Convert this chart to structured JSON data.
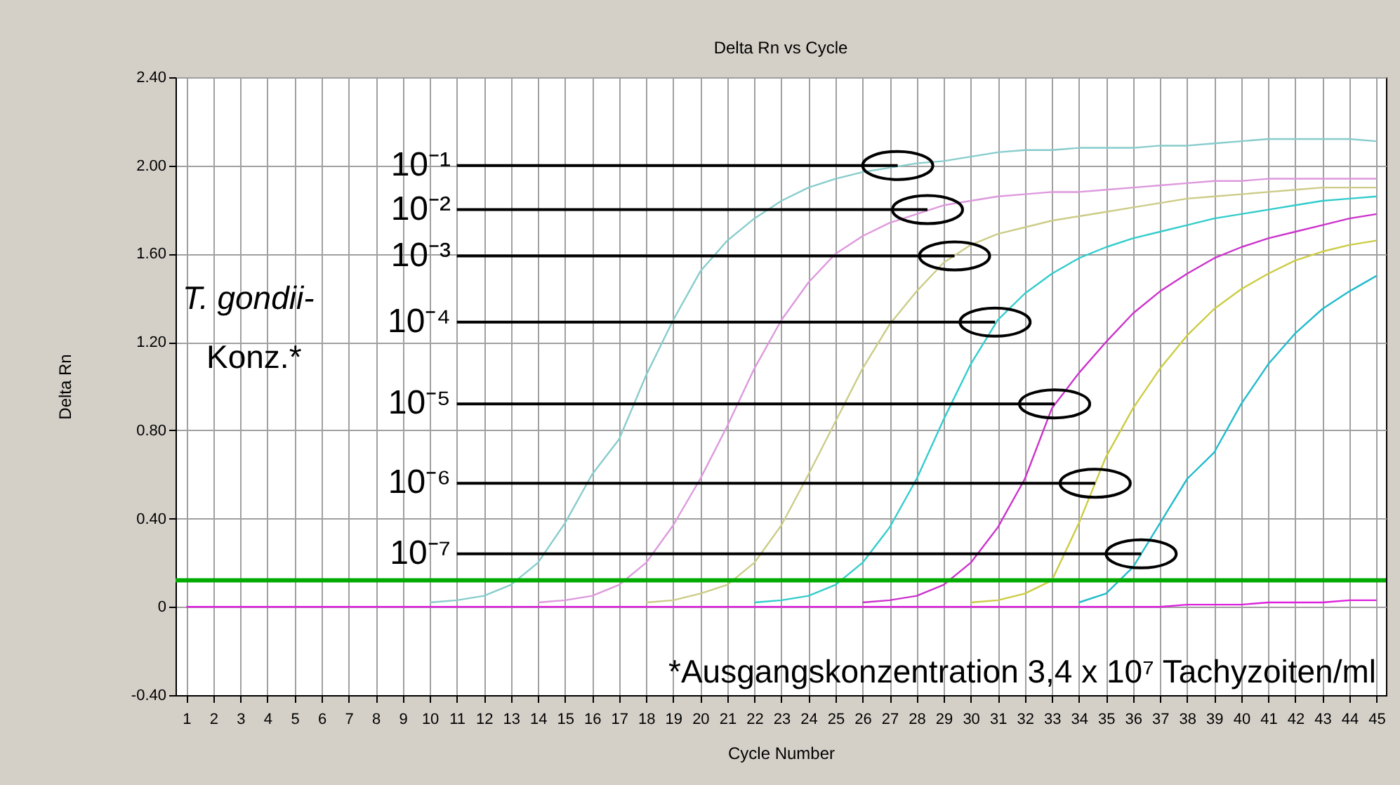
{
  "chart_data": {
    "type": "line",
    "title": "Delta Rn vs Cycle",
    "xlabel": "Cycle Number",
    "ylabel": "Delta Rn",
    "x": [
      1,
      2,
      3,
      4,
      5,
      6,
      7,
      8,
      9,
      10,
      11,
      12,
      13,
      14,
      15,
      16,
      17,
      18,
      19,
      20,
      21,
      22,
      23,
      24,
      25,
      26,
      27,
      28,
      29,
      30,
      31,
      32,
      33,
      34,
      35,
      36,
      37,
      38,
      39,
      40,
      41,
      42,
      43,
      44,
      45
    ],
    "series": [
      {
        "color": "#88cccc",
        "values": [
          null,
          null,
          null,
          null,
          null,
          null,
          null,
          null,
          null,
          0.02,
          0.03,
          0.05,
          0.1,
          0.2,
          0.38,
          0.6,
          0.76,
          1.05,
          1.3,
          1.52,
          1.66,
          1.76,
          1.84,
          1.9,
          1.94,
          1.97,
          1.99,
          2.01,
          2.02,
          2.04,
          2.06,
          2.07,
          2.07,
          2.08,
          2.08,
          2.08,
          2.09,
          2.09,
          2.1,
          2.11,
          2.12,
          2.12,
          2.12,
          2.12,
          2.11
        ]
      },
      {
        "color": "#dd99dd",
        "values": [
          null,
          null,
          null,
          null,
          null,
          null,
          null,
          null,
          null,
          null,
          null,
          null,
          null,
          0.02,
          0.03,
          0.05,
          0.1,
          0.2,
          0.37,
          0.58,
          0.82,
          1.08,
          1.3,
          1.47,
          1.6,
          1.68,
          1.74,
          1.78,
          1.82,
          1.84,
          1.86,
          1.87,
          1.88,
          1.88,
          1.89,
          1.9,
          1.91,
          1.92,
          1.93,
          1.93,
          1.94,
          1.94,
          1.94,
          1.94,
          1.94
        ]
      },
      {
        "color": "#cccc88",
        "values": [
          null,
          null,
          null,
          null,
          null,
          null,
          null,
          null,
          null,
          null,
          null,
          null,
          null,
          null,
          null,
          null,
          null,
          0.02,
          0.03,
          0.06,
          0.1,
          0.2,
          0.37,
          0.6,
          0.84,
          1.08,
          1.28,
          1.43,
          1.56,
          1.64,
          1.69,
          1.72,
          1.75,
          1.77,
          1.79,
          1.81,
          1.83,
          1.85,
          1.86,
          1.87,
          1.88,
          1.89,
          1.9,
          1.9,
          1.9
        ]
      },
      {
        "color": "#33cccc",
        "values": [
          null,
          null,
          null,
          null,
          null,
          null,
          null,
          null,
          null,
          null,
          null,
          null,
          null,
          null,
          null,
          null,
          null,
          null,
          null,
          null,
          null,
          0.02,
          0.03,
          0.05,
          0.1,
          0.2,
          0.36,
          0.58,
          0.85,
          1.1,
          1.3,
          1.42,
          1.51,
          1.58,
          1.63,
          1.67,
          1.7,
          1.73,
          1.76,
          1.78,
          1.8,
          1.82,
          1.84,
          1.85,
          1.86
        ]
      },
      {
        "color": "#cc33cc",
        "values": [
          null,
          null,
          null,
          null,
          null,
          null,
          null,
          null,
          null,
          null,
          null,
          null,
          null,
          null,
          null,
          null,
          null,
          null,
          null,
          null,
          null,
          null,
          null,
          null,
          null,
          0.02,
          0.03,
          0.05,
          0.1,
          0.2,
          0.36,
          0.58,
          0.9,
          1.06,
          1.2,
          1.33,
          1.43,
          1.51,
          1.58,
          1.63,
          1.67,
          1.7,
          1.73,
          1.76,
          1.78
        ]
      },
      {
        "color": "#cccc44",
        "values": [
          null,
          null,
          null,
          null,
          null,
          null,
          null,
          null,
          null,
          null,
          null,
          null,
          null,
          null,
          null,
          null,
          null,
          null,
          null,
          null,
          null,
          null,
          null,
          null,
          null,
          null,
          null,
          null,
          null,
          0.02,
          0.03,
          0.06,
          0.12,
          0.38,
          0.68,
          0.9,
          1.08,
          1.23,
          1.35,
          1.44,
          1.51,
          1.57,
          1.61,
          1.64,
          1.66
        ]
      },
      {
        "color": "#22bbcc",
        "values": [
          null,
          null,
          null,
          null,
          null,
          null,
          null,
          null,
          null,
          null,
          null,
          null,
          null,
          null,
          null,
          null,
          null,
          null,
          null,
          null,
          null,
          null,
          null,
          null,
          null,
          null,
          null,
          null,
          null,
          null,
          null,
          null,
          null,
          0.02,
          0.06,
          0.18,
          0.38,
          0.58,
          0.7,
          0.92,
          1.1,
          1.24,
          1.35,
          1.43,
          1.5
        ]
      },
      {
        "color": "#dd22dd",
        "values": [
          0,
          0,
          0,
          0,
          0,
          0,
          0,
          0,
          0,
          0,
          0,
          0,
          0,
          0,
          0,
          0,
          0,
          0,
          0,
          0,
          0,
          0,
          0,
          0,
          0,
          0,
          0,
          0,
          0,
          0,
          0,
          0,
          0,
          0,
          0,
          0,
          0,
          0.01,
          0.01,
          0.01,
          0.02,
          0.02,
          0.02,
          0.03,
          0.03
        ]
      }
    ],
    "xlim": [
      0.6,
      45.35
    ],
    "ylim": [
      -0.4,
      2.4
    ],
    "xticks": [
      1,
      2,
      3,
      4,
      5,
      6,
      7,
      8,
      9,
      10,
      11,
      12,
      13,
      14,
      15,
      16,
      17,
      18,
      19,
      20,
      21,
      22,
      23,
      24,
      25,
      26,
      27,
      28,
      29,
      30,
      31,
      32,
      33,
      34,
      35,
      36,
      37,
      38,
      39,
      40,
      41,
      42,
      43,
      44,
      45
    ],
    "yticks": [
      {
        "value": -0.4,
        "label": "-0.40"
      },
      0,
      {
        "value": 0.4,
        "label": "0.40"
      },
      {
        "value": 0.8,
        "label": "0.80"
      },
      {
        "value": 1.2,
        "label": "1.20"
      },
      {
        "value": 1.6,
        "label": "1.60"
      },
      {
        "value": 2.0,
        "label": "2.00"
      },
      {
        "value": 2.4,
        "label": "2.40"
      }
    ],
    "grid": true,
    "ref_lines": [
      {
        "axis": "y",
        "value": 0.12,
        "color": "#00aa00"
      }
    ],
    "annotations": [
      {
        "text": "10⁻¹",
        "x": 27.3,
        "y": 2.0
      },
      {
        "text": "10⁻²",
        "x": 28.4,
        "y": 1.8
      },
      {
        "text": "10⁻³",
        "x": 29.4,
        "y": 1.59
      },
      {
        "text": "10⁻⁴",
        "x": 30.9,
        "y": 1.29
      },
      {
        "text": "10⁻⁵",
        "x": 33.1,
        "y": 0.92
      },
      {
        "text": "10⁻⁶",
        "x": 34.6,
        "y": 0.56
      },
      {
        "text": "10⁻⁷",
        "x": 36.3,
        "y": 0.24
      },
      "T. gondii-",
      "Konz.*",
      "*Ausgangskonzentration 3,4 x 10⁷ Tachyzoiten/ml"
    ]
  }
}
